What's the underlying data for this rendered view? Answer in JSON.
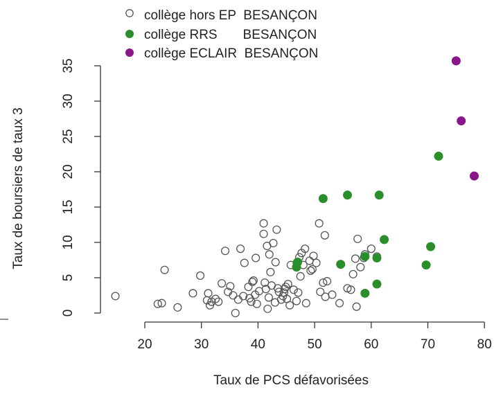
{
  "chart_data": {
    "type": "scatter",
    "xlabel": "Taux de PCS défavorisées",
    "ylabel": "Taux de boursiers de taux 3",
    "xlim": [
      10,
      80
    ],
    "ylim": [
      0,
      36
    ],
    "x_ticks": [
      20,
      30,
      40,
      50,
      60,
      70,
      80
    ],
    "y_ticks": [
      0,
      5,
      10,
      15,
      20,
      25,
      30,
      35
    ],
    "legend_position": "top",
    "series": [
      {
        "name": "collège hors EP  BESANÇON",
        "marker": "open-circle",
        "color": "#555555",
        "points": [
          [
            14.8,
            2.4
          ],
          [
            22.3,
            1.3
          ],
          [
            23.0,
            1.4
          ],
          [
            23.5,
            6.1
          ],
          [
            25.8,
            0.8
          ],
          [
            28.5,
            2.8
          ],
          [
            29.8,
            5.3
          ],
          [
            31.0,
            1.8
          ],
          [
            31.2,
            2.8
          ],
          [
            31.5,
            1.1
          ],
          [
            31.8,
            1.6
          ],
          [
            32.5,
            2.0
          ],
          [
            33.0,
            1.6
          ],
          [
            33.6,
            4.2
          ],
          [
            34.2,
            8.8
          ],
          [
            34.7,
            3.0
          ],
          [
            35.1,
            3.8
          ],
          [
            35.6,
            2.5
          ],
          [
            36.0,
            0.0
          ],
          [
            36.5,
            1.9
          ],
          [
            36.9,
            9.1
          ],
          [
            37.4,
            2.4
          ],
          [
            37.6,
            7.1
          ],
          [
            38.3,
            3.7
          ],
          [
            38.5,
            2.1
          ],
          [
            38.8,
            1.6
          ],
          [
            39.0,
            4.4
          ],
          [
            39.2,
            4.6
          ],
          [
            39.5,
            2.6
          ],
          [
            39.6,
            7.8
          ],
          [
            39.8,
            1.3
          ],
          [
            40.2,
            3.1
          ],
          [
            41.0,
            12.7
          ],
          [
            41.0,
            11.2
          ],
          [
            41.2,
            4.3
          ],
          [
            41.4,
            3.4
          ],
          [
            41.6,
            9.5
          ],
          [
            41.7,
            0.6
          ],
          [
            41.9,
            2.2
          ],
          [
            42.0,
            8.3
          ],
          [
            42.2,
            5.8
          ],
          [
            42.4,
            3.9
          ],
          [
            42.7,
            9.9
          ],
          [
            43.0,
            1.5
          ],
          [
            43.1,
            7.2
          ],
          [
            43.3,
            11.8
          ],
          [
            43.5,
            3.5
          ],
          [
            43.7,
            3.0
          ],
          [
            44.1,
            1.9
          ],
          [
            44.4,
            2.4
          ],
          [
            44.6,
            2.9
          ],
          [
            44.7,
            3.4
          ],
          [
            44.9,
            3.7
          ],
          [
            45.1,
            2.0
          ],
          [
            45.3,
            4.1
          ],
          [
            45.6,
            1.1
          ],
          [
            45.8,
            6.8
          ],
          [
            46.3,
            3.3
          ],
          [
            46.8,
            1.7
          ],
          [
            47.1,
            2.9
          ],
          [
            47.3,
            7.9
          ],
          [
            47.5,
            5.2
          ],
          [
            47.7,
            8.5
          ],
          [
            48.0,
            6.8
          ],
          [
            48.3,
            9.1
          ],
          [
            48.5,
            1.4
          ],
          [
            49.1,
            7.4
          ],
          [
            49.3,
            6.0
          ],
          [
            49.6,
            6.2
          ],
          [
            49.8,
            8.1
          ],
          [
            50.3,
            7.1
          ],
          [
            50.8,
            12.7
          ],
          [
            51.0,
            3.0
          ],
          [
            51.5,
            4.3
          ],
          [
            51.8,
            11.0
          ],
          [
            51.9,
            2.3
          ],
          [
            52.2,
            4.5
          ],
          [
            53.1,
            2.6
          ],
          [
            54.4,
            1.4
          ],
          [
            55.8,
            3.5
          ],
          [
            56.4,
            3.3
          ],
          [
            56.8,
            5.5
          ],
          [
            57.2,
            7.7
          ],
          [
            57.4,
            0.9
          ],
          [
            57.6,
            10.5
          ],
          [
            58.1,
            6.5
          ],
          [
            58.7,
            7.8
          ],
          [
            58.9,
            8.3
          ],
          [
            60.0,
            9.1
          ],
          [
            61.0,
            8.0
          ]
        ]
      },
      {
        "name": "collège RRS       BESANÇON",
        "marker": "filled-circle",
        "color": "#2a8f2a",
        "points": [
          [
            46.8,
            6.5
          ],
          [
            46.9,
            7.1
          ],
          [
            47.0,
            7.2
          ],
          [
            51.5,
            16.2
          ],
          [
            54.6,
            6.9
          ],
          [
            55.8,
            16.7
          ],
          [
            58.9,
            2.8
          ],
          [
            58.9,
            8.0
          ],
          [
            61.0,
            4.1
          ],
          [
            61.0,
            7.8
          ],
          [
            61.4,
            16.7
          ],
          [
            62.3,
            10.4
          ],
          [
            69.7,
            6.8
          ],
          [
            70.5,
            9.4
          ],
          [
            71.9,
            22.2
          ]
        ]
      },
      {
        "name": "collège ECLAIR  BESANÇON",
        "marker": "filled-circle",
        "color": "#8a178a",
        "points": [
          [
            75.0,
            35.7
          ],
          [
            75.9,
            27.2
          ],
          [
            78.2,
            19.4
          ]
        ]
      }
    ]
  }
}
